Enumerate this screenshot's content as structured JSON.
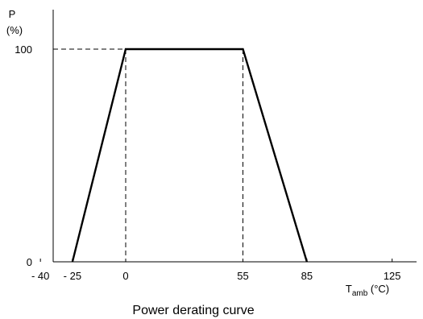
{
  "chart_data": {
    "type": "line",
    "title": "Power derating curve",
    "ylabel": {
      "main": "P",
      "unit": "(%)"
    },
    "xlabel": {
      "main": "T",
      "subscript": "amb",
      "unit": " (°C)"
    },
    "xlim": [
      -40,
      135
    ],
    "ylim": [
      0,
      100
    ],
    "x_ticks": [
      {
        "value": -40,
        "label": "- 40"
      },
      {
        "value": -25,
        "label": "- 25"
      },
      {
        "value": 0,
        "label": "0"
      },
      {
        "value": 55,
        "label": "55"
      },
      {
        "value": 85,
        "label": "85"
      },
      {
        "value": 125,
        "label": "125"
      }
    ],
    "y_ticks": [
      {
        "value": 0,
        "label": "0"
      },
      {
        "value": 100,
        "label": "100"
      }
    ],
    "series": [
      {
        "x": [
          -25,
          0,
          55,
          85
        ],
        "y": [
          0,
          100,
          100,
          0
        ]
      }
    ],
    "guides": {
      "horizontal": [
        {
          "y": 100,
          "x_from": -40,
          "x_to": 0
        }
      ],
      "vertical": [
        {
          "x": 0,
          "y_from": 0,
          "y_to": 100
        },
        {
          "x": 55,
          "y_from": 0,
          "y_to": 100
        }
      ]
    },
    "grid": false,
    "colors": {
      "line": "#000000",
      "axis": "#000000",
      "text": "#000000"
    }
  }
}
